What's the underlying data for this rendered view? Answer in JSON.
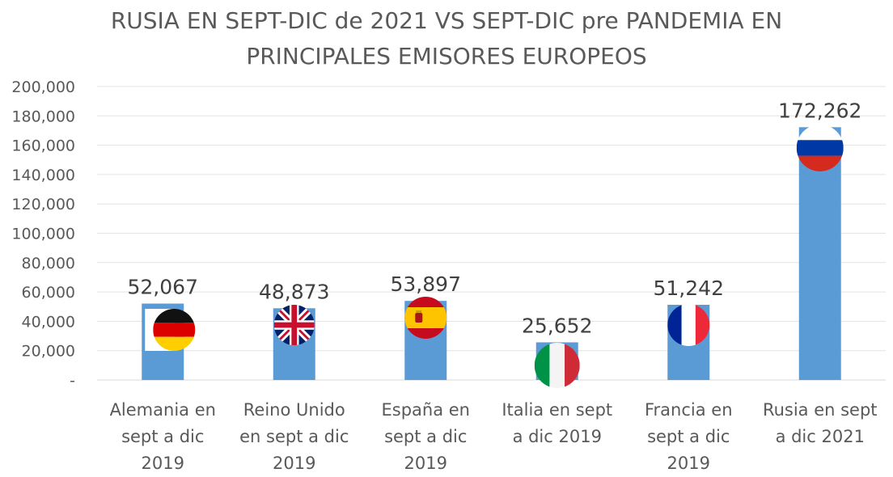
{
  "chart_data": {
    "type": "bar",
    "title_lines": [
      "RUSIA EN SEPT-DIC de 2021 VS SEPT-DIC pre PANDEMIA EN",
      "PRINCIPALES EMISORES EUROPEOS"
    ],
    "categories": [
      [
        "Alemania en",
        "sept a dic",
        "2019"
      ],
      [
        "Reino Unido",
        "en sept a dic",
        "2019"
      ],
      [
        "España en",
        "sept a dic",
        "2019"
      ],
      [
        "Italia en sept",
        "a dic 2019"
      ],
      [
        "Francia en",
        "sept a dic",
        "2019"
      ],
      [
        "Rusia en sept",
        "a dic 2021"
      ]
    ],
    "values": [
      52067,
      48873,
      53897,
      25652,
      51242,
      172262
    ],
    "value_labels": [
      "52,067",
      "48,873",
      "53,897",
      "25,652",
      "51,242",
      "172,262"
    ],
    "flag_icons": [
      "germany-flag-icon",
      "uk-flag-icon",
      "spain-flag-icon",
      "italy-flag-icon",
      "france-flag-icon",
      "russia-flag-icon"
    ],
    "ylim": [
      0,
      200000
    ],
    "yticks": [
      0,
      20000,
      40000,
      60000,
      80000,
      100000,
      120000,
      140000,
      160000,
      180000,
      200000
    ],
    "ytick_labels": [
      "-",
      "20,000",
      "40,000",
      "60,000",
      "80,000",
      "100,000",
      "120,000",
      "140,000",
      "160,000",
      "180,000",
      "200,000"
    ],
    "bar_color": "#5b9bd5",
    "grid": true,
    "legend": "none"
  }
}
